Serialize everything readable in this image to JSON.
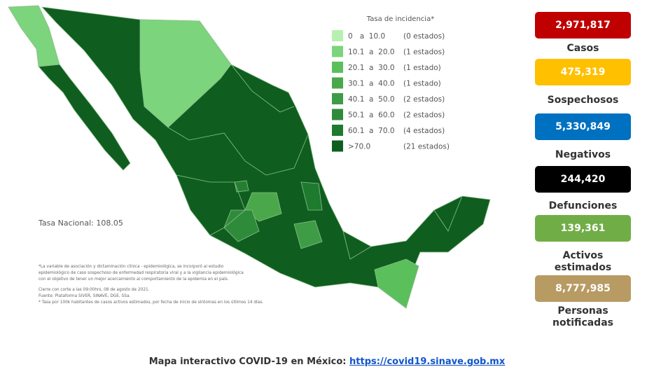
{
  "legend": {
    "title": "Tasa de incidencia*",
    "items": [
      {
        "range": "0   a  10.0",
        "count": "(0 estados)"
      },
      {
        "range": "10.1  a  20.0",
        "count": "(1 estados)"
      },
      {
        "range": "20.1  a  30.0",
        "count": "(1 estado)"
      },
      {
        "range": "30.1  a  40.0",
        "count": "(1 estado)"
      },
      {
        "range": "40.1  a  50.0",
        "count": "(2 estados)"
      },
      {
        "range": "50.1  a  60.0",
        "count": "(2 estados)"
      },
      {
        "range": "60.1  a  70.0",
        "count": "(4 estados)"
      },
      {
        "range": ">70.0",
        "count": "(21 estados)"
      }
    ]
  },
  "national_rate": "Tasa Nacional: 108.05",
  "notes": [
    "*La variable de asociación y dictaminación clínica - epidemiológica, se incorporó al estudio",
    "epidemiológico de caso sospechoso de enfermedad respiratoria viral y a la vigilancia epidemiológica",
    "con el objetivo de tener un mejor acercamiento al comportamiento de la epidemia en el país.",
    "Cierre con corte a las 09:00hrs, 08 de agosto de 2021.",
    "Fuente: Plataforma SIVER, SINAVE, DGE, SSa.",
    "* Tasa por 100k habitantes de casos activos estimados, por fecha de inicio de síntomas en los últimos 14 días."
  ],
  "stats": [
    {
      "value": "2,971,817",
      "label": "Casos"
    },
    {
      "value": "475,319",
      "label": "Sospechosos"
    },
    {
      "value": "5,330,849",
      "label": "Negativos"
    },
    {
      "value": "244,420",
      "label": "Defunciones"
    },
    {
      "value": "139,361",
      "label": "Activos estimados"
    },
    {
      "value": "8,777,985",
      "label": "Personas notificadas"
    }
  ],
  "footer": {
    "text": "Mapa interactivo COVID-19 en México:",
    "link": "https://covid19.sinave.gob.mx"
  }
}
